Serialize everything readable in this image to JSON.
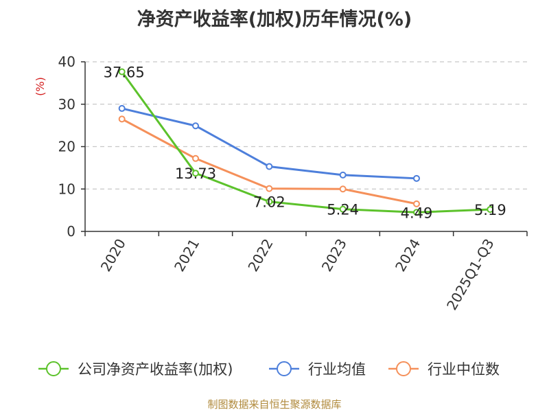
{
  "chart_data": {
    "type": "line",
    "title": "净资产收益率(加权)历年情况(%)",
    "xlabel": "",
    "ylabel": "(%)",
    "categories": [
      "2020",
      "2021",
      "2022",
      "2023",
      "2024",
      "2025Q1-Q3"
    ],
    "ylim": [
      0,
      40
    ],
    "yticks": [
      0,
      10,
      20,
      30,
      40
    ],
    "grid": true,
    "legend_position": "bottom",
    "series": [
      {
        "name": "公司净资产收益率(加权)",
        "color": "#5cc22b",
        "values": [
          37.65,
          13.73,
          7.02,
          5.24,
          4.49,
          5.19
        ],
        "labels": [
          "37.65",
          "13.73",
          "7.02",
          "5.24",
          "4.49",
          "5.19"
        ]
      },
      {
        "name": "行业均值",
        "color": "#4d7fdb",
        "values": [
          29.0,
          24.9,
          15.3,
          13.3,
          12.5,
          null
        ]
      },
      {
        "name": "行业中位数",
        "color": "#f5905a",
        "values": [
          26.5,
          17.2,
          10.1,
          10.0,
          6.5,
          null
        ]
      }
    ]
  },
  "source": "制图数据来自恒生聚源数据库"
}
